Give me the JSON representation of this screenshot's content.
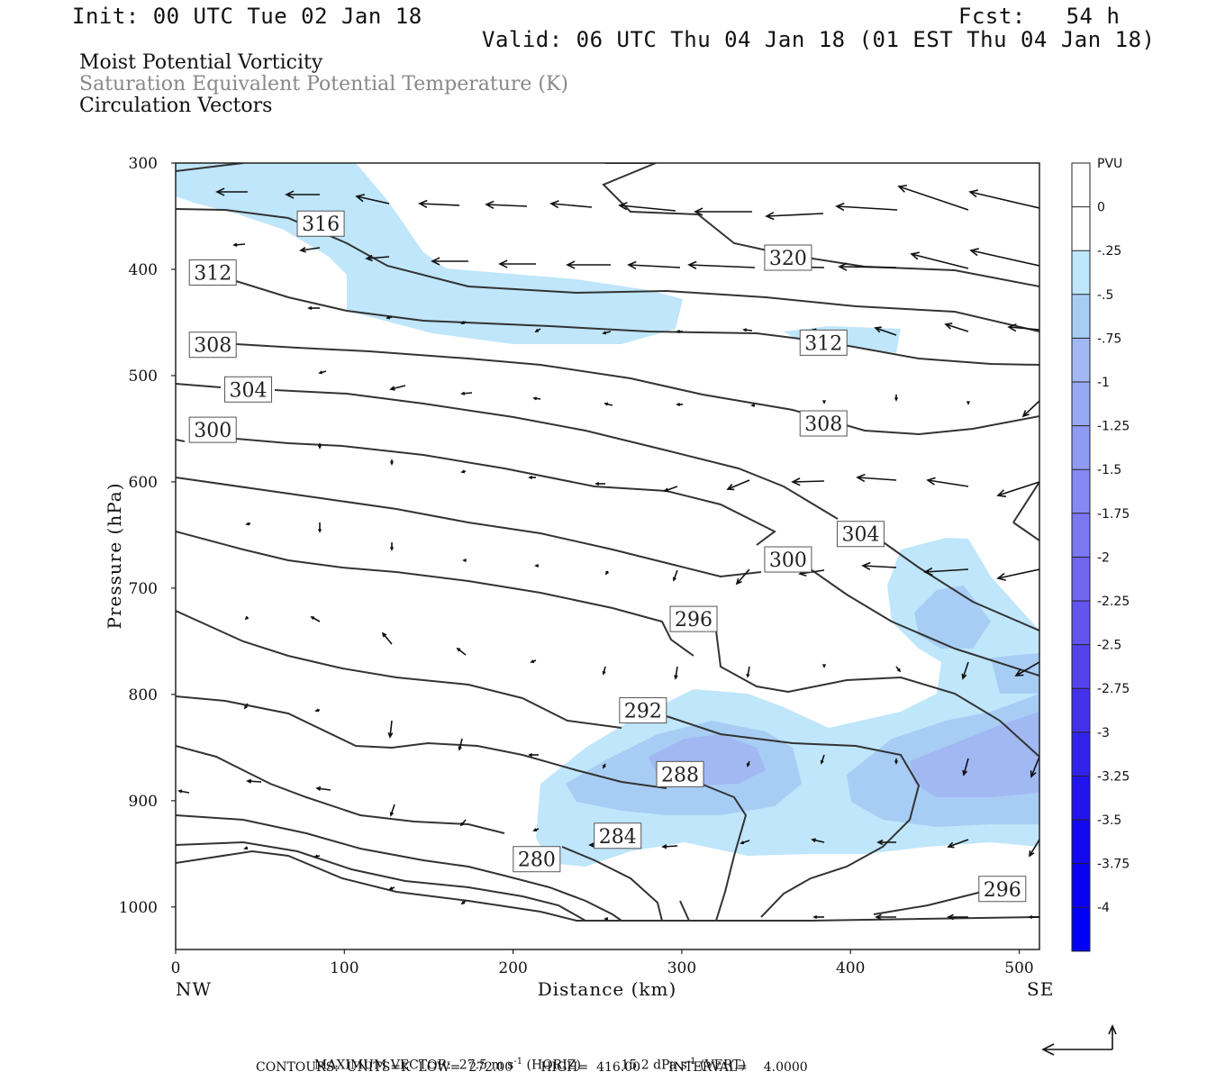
{
  "header": {
    "init": "Init: 00 UTC Tue 02 Jan 18",
    "fcst": "Fcst:   54 h",
    "valid": "Valid: 06 UTC Thu 04 Jan 18 (01 EST Thu 04 Jan 18)",
    "fields": [
      "Moist Potential Vorticity",
      "Saturation Equivalent Potential Temperature (K)",
      "Circulation Vectors"
    ]
  },
  "footer": {
    "max_vector_a": "MAXIMUM VECTOR:  27.5 m s",
    "max_vector_b": "(HORIZ)",
    "max_vector_c": "15.2 dPa s",
    "max_vector_d": "(VERT)",
    "exp": "-1",
    "contours": "CONTOURS:  UNITS=K  LOW=  272.00       HIGH=  416.00       INTERVAL=    4.0000"
  },
  "colors": {
    "mpv_025": "#bfe6fa",
    "mpv_050": "#a8cdf5",
    "mpv_075": "#a1b8f3",
    "contour": "#333333"
  },
  "chart_data": {
    "type": "cross-section",
    "title": "Moist Potential Vorticity",
    "xlabel": "Distance (km)",
    "ylabel": "Pressure (hPa)",
    "xlim": [
      0,
      512
    ],
    "ylim": [
      1040,
      300
    ],
    "x_ticks": [
      "0",
      "100",
      "200",
      "300",
      "400",
      "500"
    ],
    "x_tick_values": [
      0,
      100,
      200,
      300,
      400,
      500
    ],
    "y_ticks": [
      "300",
      "400",
      "500",
      "600",
      "700",
      "800",
      "900",
      "1000"
    ],
    "y_tick_values": [
      300,
      400,
      500,
      600,
      700,
      800,
      900,
      1000
    ],
    "x_end_labels": {
      "left": "NW",
      "right": "SE"
    },
    "colorbar": {
      "units": "PVU",
      "labels": [
        "0",
        "-.25",
        "-.5",
        "-.75",
        "-1",
        "-1.25",
        "-1.5",
        "-1.75",
        "-2",
        "-2.25",
        "-2.5",
        "-2.75",
        "-3",
        "-3.25",
        "-3.5",
        "-3.75",
        "-4"
      ],
      "colors": [
        "#ffffff",
        "#ffffff",
        "#bfe6fa",
        "#a8cdf5",
        "#a1b8f3",
        "#98a9f3",
        "#8f9bf2",
        "#8689f1",
        "#7b78f0",
        "#6f66ee",
        "#6254ec",
        "#5442eb",
        "#4432ea",
        "#3322ea",
        "#2214ec",
        "#1308ee",
        "#0a00f0",
        "#0000f5"
      ]
    },
    "theta_e_contour_labels": [
      {
        "label": "316",
        "x": 86,
        "p": 357
      },
      {
        "label": "312",
        "x": 22,
        "p": 403
      },
      {
        "label": "308",
        "x": 22,
        "p": 471
      },
      {
        "label": "304",
        "x": 43,
        "p": 513
      },
      {
        "label": "300",
        "x": 22,
        "p": 551
      },
      {
        "label": "320",
        "x": 363,
        "p": 389
      },
      {
        "label": "312",
        "x": 384,
        "p": 469
      },
      {
        "label": "308",
        "x": 384,
        "p": 545
      },
      {
        "label": "304",
        "x": 406,
        "p": 649
      },
      {
        "label": "300",
        "x": 363,
        "p": 673
      },
      {
        "label": "296",
        "x": 307,
        "p": 729
      },
      {
        "label": "292",
        "x": 277,
        "p": 815
      },
      {
        "label": "288",
        "x": 299,
        "p": 875
      },
      {
        "label": "284",
        "x": 262,
        "p": 933
      },
      {
        "label": "280",
        "x": 214,
        "p": 955
      },
      {
        "label": "296",
        "x": 490,
        "p": 983
      }
    ]
  }
}
